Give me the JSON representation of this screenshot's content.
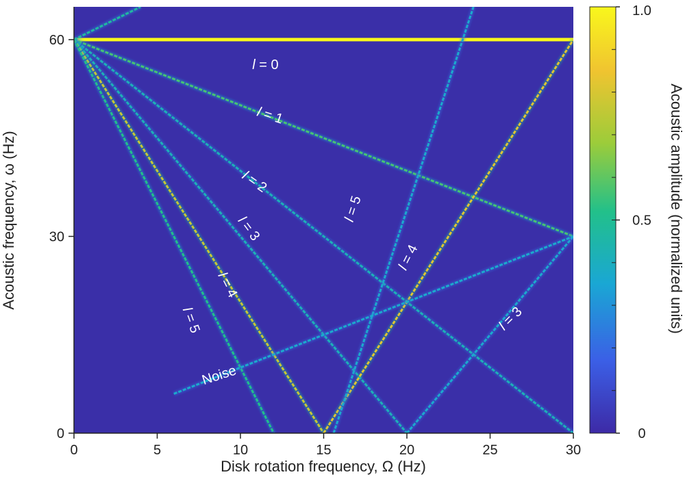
{
  "chart_data": {
    "type": "heatmap",
    "xlabel": "Disk rotation frequency, Ω (Hz)",
    "ylabel": "Acoustic frequency, ω (Hz)",
    "xlim": [
      0,
      30
    ],
    "ylim": [
      0,
      65
    ],
    "x_ticks": [
      "0",
      "5",
      "10",
      "15",
      "20",
      "25",
      "30"
    ],
    "x_tick_values": [
      0,
      5,
      10,
      15,
      20,
      25,
      30
    ],
    "y_ticks": [
      "0",
      "30",
      "60"
    ],
    "y_tick_values": [
      0,
      30,
      60
    ],
    "colorbar": {
      "label": "Acoustic amplitude (normalized units)",
      "range": [
        0,
        1
      ],
      "ticks": [
        "0",
        "0.5",
        "1.0"
      ],
      "tick_values": [
        0,
        0.5,
        1.0
      ],
      "colors": [
        "#3d2aa6",
        "#3b5fe6",
        "#1aa7d4",
        "#22c08a",
        "#9ccc3a",
        "#f0c430",
        "#f9f71c"
      ]
    },
    "background_color": "#3a2fa8",
    "lines": [
      {
        "name": "l = 0",
        "x": [
          0,
          30
        ],
        "y": [
          60,
          60
        ],
        "amplitude": 1.0
      },
      {
        "name": "l = 1",
        "x": [
          0,
          30
        ],
        "y": [
          60,
          30
        ],
        "amplitude": 0.55
      },
      {
        "name": "l = 2",
        "x": [
          0,
          30
        ],
        "y": [
          60,
          0
        ],
        "amplitude": 0.4
      },
      {
        "name": "l = 3",
        "x": [
          0,
          20
        ],
        "y": [
          60,
          0
        ],
        "amplitude": 0.4
      },
      {
        "name": "l = 4",
        "x": [
          0,
          15
        ],
        "y": [
          60,
          0
        ],
        "amplitude": 0.75
      },
      {
        "name": "l = 5",
        "x": [
          0,
          12
        ],
        "y": [
          60,
          0
        ],
        "amplitude": 0.5
      },
      {
        "name": "l = 4",
        "x": [
          15,
          30
        ],
        "y": [
          0,
          60
        ],
        "amplitude": 0.8
      },
      {
        "name": "l = 5",
        "x": [
          15.6,
          24
        ],
        "y": [
          0,
          65
        ],
        "amplitude": 0.35
      },
      {
        "name": "l = 3",
        "x": [
          20,
          30
        ],
        "y": [
          0,
          30
        ],
        "amplitude": 0.35
      },
      {
        "name": "Noise",
        "x": [
          6,
          30
        ],
        "y": [
          6,
          30
        ],
        "amplitude": 0.35
      },
      {
        "name": "",
        "x": [
          0,
          4
        ],
        "y": [
          60,
          65
        ],
        "amplitude": 0.45
      }
    ],
    "annotations": [
      {
        "text": "l = 0",
        "x": 11.5,
        "y": 55.5,
        "angle": 0
      },
      {
        "text": "l = 1",
        "x": 11.7,
        "y": 47.8,
        "angle": 18
      },
      {
        "text": "l = 2",
        "x": 10.7,
        "y": 37.8,
        "angle": 35
      },
      {
        "text": "l = 3",
        "x": 10.3,
        "y": 30.8,
        "angle": 53
      },
      {
        "text": "l = 4",
        "x": 9.0,
        "y": 22.3,
        "angle": 63
      },
      {
        "text": "l = 5",
        "x": 6.8,
        "y": 17.0,
        "angle": 70
      },
      {
        "text": "l = 5",
        "x": 17.0,
        "y": 34.0,
        "angle": -72
      },
      {
        "text": "l = 4",
        "x": 20.3,
        "y": 26.5,
        "angle": -63
      },
      {
        "text": "l = 3",
        "x": 26.4,
        "y": 17.0,
        "angle": -45
      },
      {
        "text": "Noise",
        "x": 8.8,
        "y": 8.2,
        "angle": -18
      }
    ]
  }
}
